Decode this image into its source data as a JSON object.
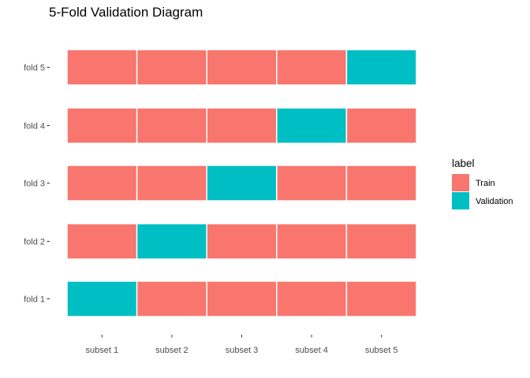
{
  "chart_data": {
    "type": "heatmap",
    "title": "5-Fold Validation Diagram",
    "xlabel": "",
    "ylabel": "",
    "grid": false,
    "legend_position": "right",
    "x_categories": [
      "subset 1",
      "subset 2",
      "subset 3",
      "subset 4",
      "subset 5"
    ],
    "y_categories": [
      "fold 1",
      "fold 2",
      "fold 3",
      "fold 4",
      "fold 5"
    ],
    "legend": {
      "title": "label",
      "entries": [
        {
          "label": "Train",
          "color": "#F8766D"
        },
        {
          "label": "Validation",
          "color": "#00BFC4"
        }
      ]
    },
    "cells": [
      {
        "fold": "fold 1",
        "values": [
          "Validation",
          "Train",
          "Train",
          "Train",
          "Train"
        ]
      },
      {
        "fold": "fold 2",
        "values": [
          "Train",
          "Validation",
          "Train",
          "Train",
          "Train"
        ]
      },
      {
        "fold": "fold 3",
        "values": [
          "Train",
          "Train",
          "Validation",
          "Train",
          "Train"
        ]
      },
      {
        "fold": "fold 4",
        "values": [
          "Train",
          "Train",
          "Train",
          "Validation",
          "Train"
        ]
      },
      {
        "fold": "fold 5",
        "values": [
          "Train",
          "Train",
          "Train",
          "Train",
          "Validation"
        ]
      }
    ]
  }
}
